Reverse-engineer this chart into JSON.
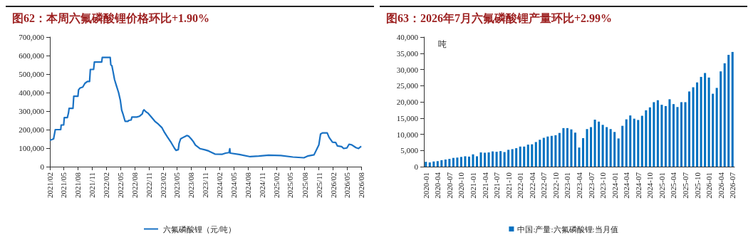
{
  "chart_data": [
    {
      "type": "line",
      "title": "图62：本周六氟磷酸锂价格环比+1.90%",
      "legend": "bottom",
      "xlim": [
        "2021-02-01",
        "2026-08-01"
      ],
      "xticks": [
        {
          "value": "2021-02-01",
          "label": "2021/02"
        },
        {
          "value": "2021-05-01",
          "label": "2021/05"
        },
        {
          "value": "2021-08-01",
          "label": "2021/08"
        },
        {
          "value": "2021-11-01",
          "label": "2021/11"
        },
        {
          "value": "2022-02-01",
          "label": "2022/02"
        },
        {
          "value": "2022-05-01",
          "label": "2022/05"
        },
        {
          "value": "2022-08-01",
          "label": "2022/08"
        },
        {
          "value": "2022-11-01",
          "label": "2022/11"
        },
        {
          "value": "2023-02-01",
          "label": "2023/02"
        },
        {
          "value": "2023-05-01",
          "label": "2023/05"
        },
        {
          "value": "2023-08-01",
          "label": "2023/08"
        },
        {
          "value": "2023-11-01",
          "label": "2023/11"
        },
        {
          "value": "2024-02-01",
          "label": "2024/02"
        },
        {
          "value": "2024-05-01",
          "label": "2024/05"
        },
        {
          "value": "2024-08-01",
          "label": "2024/08"
        },
        {
          "value": "2024-11-01",
          "label": "2024/11"
        },
        {
          "value": "2025-02-01",
          "label": "2025/02"
        },
        {
          "value": "2025-05-01",
          "label": "2025/05"
        },
        {
          "value": "2025-08-01",
          "label": "2025/08"
        },
        {
          "value": "2025-11-01",
          "label": "2025/11"
        },
        {
          "value": "2026-02-01",
          "label": "2026/02"
        },
        {
          "value": "2026-05-01",
          "label": "2026/05"
        },
        {
          "value": "2026-08-01",
          "label": "2026/08"
        }
      ],
      "ylim": [
        0,
        700000
      ],
      "yticks": [
        0,
        {
          "value": 100000,
          "label": "100,000"
        },
        {
          "value": 200000,
          "label": "200,000"
        },
        {
          "value": 300000,
          "label": "300,000"
        },
        {
          "value": 400000,
          "label": "400,000"
        },
        {
          "value": 500000,
          "label": "500,000"
        },
        {
          "value": 600000,
          "label": "600,000"
        },
        {
          "value": 700000,
          "label": "700,000"
        }
      ],
      "series": [
        {
          "name": "六氟磷酸锂（元/吨）",
          "color": "#1a72c4",
          "x": [
            "2021-02-01",
            "2021-02-25",
            "2021-03-08",
            "2021-04-12",
            "2021-04-15",
            "2021-05-01",
            "2021-05-05",
            "2021-05-25",
            "2021-06-01",
            "2021-06-05",
            "2021-06-30",
            "2021-07-05",
            "2021-08-01",
            "2021-08-05",
            "2021-08-15",
            "2021-09-01",
            "2021-09-15",
            "2021-10-01",
            "2021-10-15",
            "2021-10-20",
            "2021-11-10",
            "2021-11-15",
            "2022-01-01",
            "2022-01-05",
            "2022-02-25",
            "2022-03-01",
            "2022-03-08",
            "2022-03-15",
            "2022-03-25",
            "2022-04-05",
            "2022-04-20",
            "2022-05-01",
            "2022-05-10",
            "2022-05-20",
            "2022-06-01",
            "2022-06-20",
            "2022-06-25",
            "2022-07-10",
            "2022-07-15",
            "2022-08-15",
            "2022-09-01",
            "2022-09-20",
            "2022-09-25",
            "2022-10-01",
            "2022-10-15",
            "2022-10-25",
            "2022-11-15",
            "2022-12-10",
            "2023-01-01",
            "2023-01-25",
            "2023-02-10",
            "2023-03-01",
            "2023-03-25",
            "2023-04-15",
            "2023-04-25",
            "2023-05-10",
            "2023-05-15",
            "2023-05-25",
            "2023-06-15",
            "2023-07-05",
            "2023-07-15",
            "2023-08-01",
            "2023-08-15",
            "2023-08-28",
            "2023-09-28",
            "2023-10-29",
            "2023-11-21",
            "2024-01-01",
            "2024-02-18",
            "2024-03-10",
            "2024-04-01",
            "2024-04-06",
            "2024-04-09",
            "2024-06-06",
            "2024-08-15",
            "2024-10-10",
            "2024-12-12",
            "2025-03-01",
            "2025-05-18",
            "2025-07-28",
            "2025-08-20",
            "2025-10-01",
            "2025-11-01",
            "2025-11-12",
            "2025-11-24",
            "2025-12-25",
            "2026-01-06",
            "2026-01-28",
            "2026-02-18",
            "2026-03-01",
            "2026-03-28",
            "2026-04-10",
            "2026-05-01",
            "2026-05-15",
            "2026-06-01",
            "2026-06-28",
            "2026-07-15",
            "2026-08-01"
          ],
          "values": [
            142000,
            150000,
            200000,
            200000,
            225000,
            225000,
            265000,
            265000,
            290000,
            315000,
            315000,
            380000,
            380000,
            415000,
            425000,
            430000,
            450000,
            460000,
            460000,
            525000,
            525000,
            565000,
            565000,
            590000,
            590000,
            550000,
            545000,
            515000,
            470000,
            440000,
            400000,
            360000,
            305000,
            280000,
            245000,
            245000,
            250000,
            252000,
            268000,
            268000,
            272000,
            285000,
            300000,
            307000,
            295000,
            290000,
            270000,
            245000,
            230000,
            210000,
            185000,
            160000,
            130000,
            100000,
            88000,
            92000,
            125000,
            150000,
            160000,
            168000,
            165000,
            150000,
            135000,
            117000,
            97000,
            91000,
            85000,
            68000,
            67000,
            73000,
            76000,
            97000,
            73000,
            66000,
            54000,
            57000,
            62000,
            60000,
            52000,
            48000,
            57000,
            64000,
            117000,
            176000,
            182000,
            182000,
            158000,
            132000,
            130000,
            112000,
            108000,
            98000,
            101000,
            121000,
            118000,
            103000,
            98000,
            110000
          ]
        }
      ]
    },
    {
      "type": "bar",
      "title": "图63：2026年7月六氟磷酸锂产量环比+2.99%",
      "legend": "bottom",
      "annotations": [
        "吨"
      ],
      "categories": [
        "2020-01",
        null,
        null,
        "2020-04",
        null,
        null,
        "2020-07",
        null,
        null,
        "2020-10",
        null,
        null,
        "2021-01",
        null,
        null,
        "2021-04",
        null,
        null,
        "2021-07",
        null,
        null,
        "2021-10",
        null,
        null,
        "2022-01",
        null,
        null,
        "2022-04",
        null,
        null,
        "2022-07",
        null,
        null,
        "2022-10",
        null,
        null,
        "2023-01",
        null,
        null,
        "2023-04",
        null,
        null,
        "2023-07",
        null,
        null,
        "2023-10",
        null,
        null,
        "2024-01",
        null,
        null,
        "2024-04",
        null,
        null,
        "2024-07",
        null,
        null,
        "2024-10",
        null,
        null,
        "2025-01",
        null,
        null,
        "2025-04",
        null,
        null,
        "2025-07",
        null,
        null,
        "2025-10",
        null,
        null,
        "2026-01",
        null,
        null,
        "2026-04",
        null,
        null,
        "2026-07"
      ],
      "ylim": [
        0,
        40000
      ],
      "yticks": [
        0,
        {
          "value": 5000,
          "label": "5,000"
        },
        {
          "value": 10000,
          "label": "10,000"
        },
        {
          "value": 15000,
          "label": "15,000"
        },
        {
          "value": 20000,
          "label": "20,000"
        },
        {
          "value": 25000,
          "label": "25,000"
        },
        {
          "value": 30000,
          "label": "30,000"
        },
        {
          "value": 35000,
          "label": "35,000"
        },
        {
          "value": 40000,
          "label": "40,000"
        }
      ],
      "series": [
        {
          "name": "中国:产量:六氟磷酸锂:当月值",
          "color": "#0070c0",
          "values": [
            1500,
            1300,
            1600,
            1700,
            2000,
            2200,
            2400,
            2700,
            2800,
            3000,
            3200,
            3100,
            3800,
            3200,
            4400,
            4300,
            4400,
            4700,
            4600,
            4800,
            4500,
            5200,
            5400,
            5700,
            6200,
            6200,
            6800,
            6900,
            7600,
            8300,
            8900,
            9300,
            9500,
            9700,
            10400,
            11900,
            11900,
            11500,
            10500,
            5900,
            8800,
            11600,
            12200,
            14500,
            13900,
            12900,
            12200,
            11600,
            10700,
            8700,
            12600,
            14600,
            15800,
            14800,
            14400,
            15700,
            17400,
            18300,
            19900,
            20500,
            19100,
            18700,
            20800,
            19300,
            18400,
            19900,
            19900,
            23200,
            24500,
            26000,
            27700,
            28900,
            27500,
            22500,
            24300,
            29400,
            31900,
            34500,
            35400
          ]
        }
      ]
    }
  ]
}
